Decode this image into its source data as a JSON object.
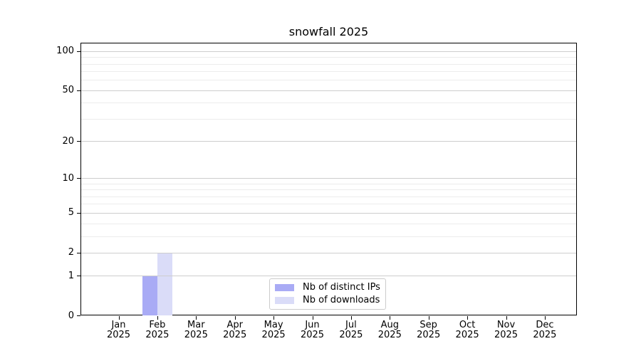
{
  "title": "snowfall 2025",
  "chart_data": {
    "type": "bar",
    "title": "snowfall 2025",
    "categories": [
      "Jan",
      "Feb",
      "Mar",
      "Apr",
      "May",
      "Jun",
      "Jul",
      "Aug",
      "Sep",
      "Oct",
      "Nov",
      "Dec"
    ],
    "year_label": "2025",
    "series": [
      {
        "name": "Nb of distinct IPs",
        "color": "#a9abf5",
        "values": [
          0,
          1,
          0,
          0,
          0,
          0,
          0,
          0,
          0,
          0,
          0,
          0
        ]
      },
      {
        "name": "Nb of downloads",
        "color": "#dadcf8",
        "values": [
          0,
          2,
          0,
          0,
          0,
          0,
          0,
          0,
          0,
          0,
          0,
          0
        ]
      }
    ],
    "xlabel": "",
    "ylabel": "",
    "y_axis": {
      "scale": "log1p",
      "major_ticks": [
        0,
        1,
        2,
        5,
        10,
        20,
        50,
        100
      ],
      "minor_gridlines": [
        3,
        4,
        6,
        7,
        8,
        9,
        30,
        40,
        60,
        70,
        80,
        90
      ],
      "ylim": [
        0,
        116
      ]
    },
    "grid": true,
    "legend_position": "lower center"
  },
  "colors": {
    "axis": "#000000",
    "major_grid": "#cdcdcd",
    "minor_grid": "#ececec",
    "background": "#ffffff",
    "distinct_ips_bar": "#a9abf5",
    "downloads_bar": "#dadcf8"
  }
}
